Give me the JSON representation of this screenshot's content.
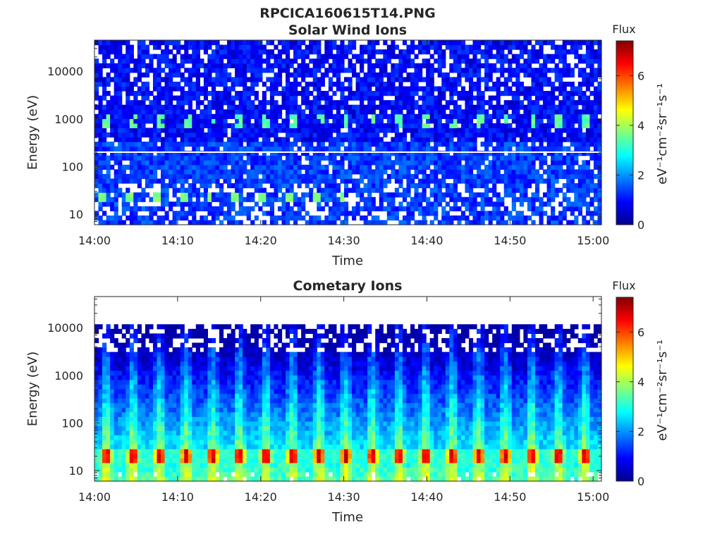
{
  "figure": {
    "filename": "RPCICA160615T14.PNG"
  },
  "chart_data": [
    {
      "type": "heatmap",
      "title": "Solar Wind Ions",
      "xlabel": "Time",
      "ylabel": "Energy (eV)",
      "x_ticks": [
        "14:00",
        "14:10",
        "14:20",
        "14:30",
        "14:40",
        "14:50",
        "15:00"
      ],
      "x_range": [
        "14:00",
        "15:01"
      ],
      "y_scale": "log",
      "y_ticks": [
        10,
        100,
        1000,
        10000
      ],
      "y_tick_labels": [
        "10",
        "100",
        "1000",
        "10000"
      ],
      "y_range": [
        6,
        45000
      ],
      "colorbar": {
        "title": "Flux",
        "label": "eV⁻¹cm⁻²sr⁻¹s⁻¹",
        "range": [
          0,
          7.4
        ],
        "ticks": [
          0,
          2,
          4,
          6
        ],
        "colormap": "jet"
      },
      "features": [
        {
          "description": "periodic bursts",
          "energy_eV": [
            600,
            1300
          ],
          "period_min": 3.2,
          "value_approx": 3.2
        },
        {
          "description": "low-energy periodic peaks",
          "energy_eV": [
            18,
            30
          ],
          "period_min": 3.2,
          "value_approx": 3.5
        },
        {
          "description": "background",
          "energy_eV": [
            6,
            45000
          ],
          "value_approx": 0.8
        }
      ]
    },
    {
      "type": "heatmap",
      "title": "Cometary Ions",
      "xlabel": "Time",
      "ylabel": "Energy (eV)",
      "x_ticks": [
        "14:00",
        "14:10",
        "14:20",
        "14:30",
        "14:40",
        "14:50",
        "15:00"
      ],
      "x_range": [
        "14:00",
        "15:01"
      ],
      "y_scale": "log",
      "y_ticks": [
        10,
        100,
        1000,
        10000
      ],
      "y_tick_labels": [
        "10",
        "100",
        "1000",
        "10000"
      ],
      "y_range": [
        6,
        45000
      ],
      "colorbar": {
        "title": "Flux",
        "label": "eV⁻¹cm⁻²sr⁻¹s⁻¹",
        "range": [
          0,
          7.4
        ],
        "ticks": [
          0,
          2,
          4,
          6
        ],
        "colormap": "jet"
      },
      "features": [
        {
          "description": "periodic intense peaks",
          "energy_eV": [
            15,
            30
          ],
          "period_min": 3.2,
          "value_approx": 6.5
        },
        {
          "description": "no data above",
          "energy_eV": [
            11000,
            45000
          ]
        }
      ]
    }
  ]
}
